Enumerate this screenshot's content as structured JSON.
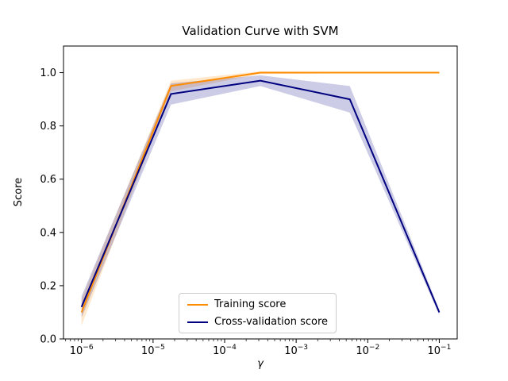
{
  "chart_data": {
    "type": "line",
    "title": "Validation Curve with SVM",
    "xlabel": "γ",
    "ylabel": "Score",
    "xscale": "log",
    "xlim": [
      5.6e-07,
      0.178
    ],
    "ylim": [
      0.0,
      1.1
    ],
    "x": [
      1e-06,
      1.78e-05,
      0.000316,
      0.00562,
      0.1
    ],
    "xtick_exponents": [
      -6,
      -5,
      -4,
      -3,
      -2,
      -1
    ],
    "yticks": [
      0.0,
      0.2,
      0.4,
      0.6,
      0.8,
      1.0
    ],
    "grid": false,
    "legend_position": "lower center",
    "series": [
      {
        "name": "Training score",
        "color": "#ff8c00",
        "values": [
          0.1,
          0.95,
          1.0,
          1.0,
          1.0
        ],
        "std": [
          0.05,
          0.02,
          0.005,
          0.002,
          0.002
        ]
      },
      {
        "name": "Cross-validation score",
        "color": "#000080",
        "values": [
          0.12,
          0.92,
          0.97,
          0.9,
          0.1
        ],
        "std": [
          0.04,
          0.04,
          0.02,
          0.05,
          0.01
        ]
      }
    ]
  }
}
